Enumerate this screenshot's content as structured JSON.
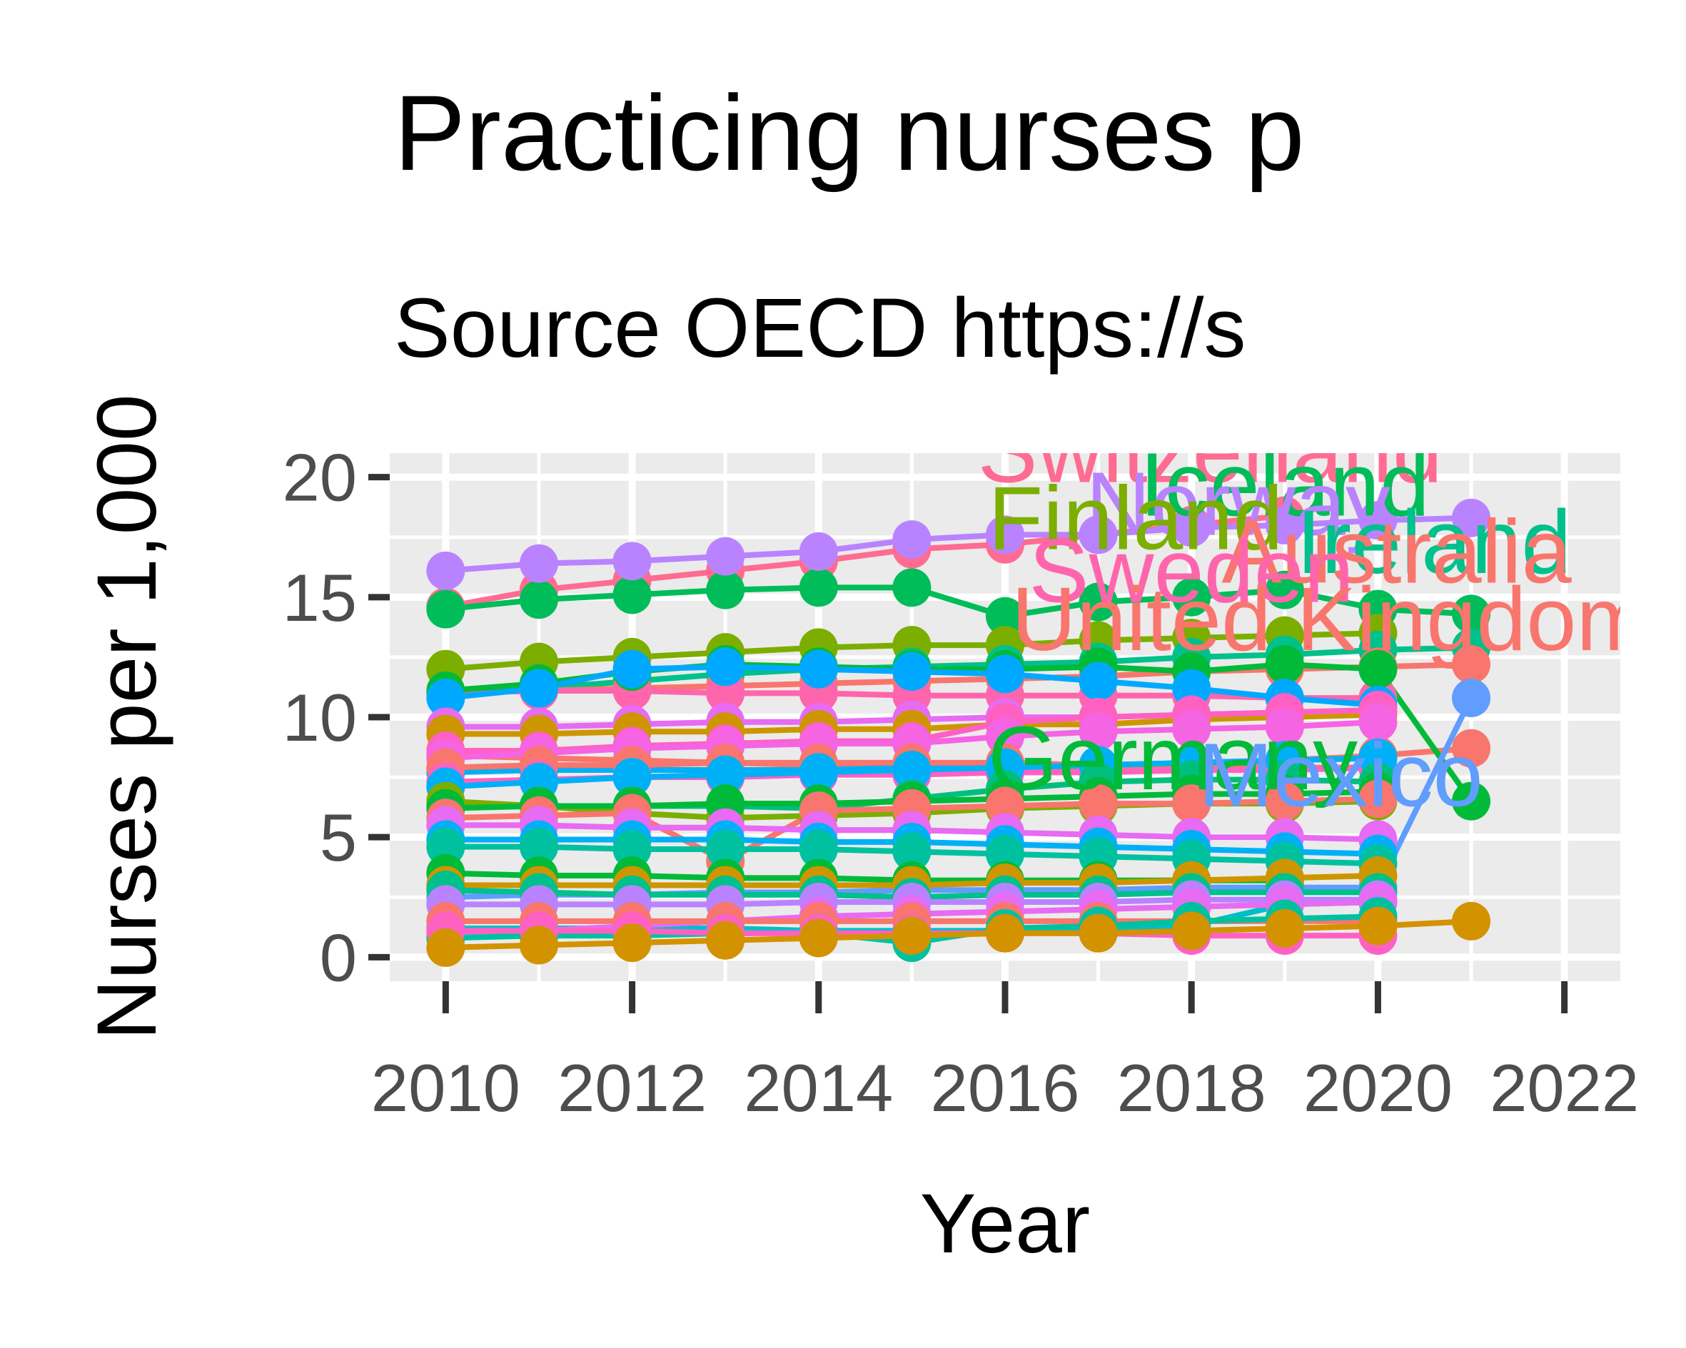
{
  "chart_data": {
    "type": "line",
    "title": "Practicing nurses p",
    "subtitle": "Source OECD https://s",
    "xlabel": "Year",
    "ylabel": "Nurses per 1,000",
    "xlim": [
      2009.4,
      2022.6
    ],
    "ylim": [
      -1,
      21
    ],
    "x_ticks": [
      2010,
      2012,
      2014,
      2016,
      2018,
      2020,
      2022
    ],
    "y_ticks": [
      0,
      5,
      10,
      15,
      20
    ],
    "grid": true,
    "legend": "none",
    "series": [
      {
        "name": "Switzerland",
        "color": "#FF6C91",
        "label_at": [
          2018.2,
          19.8
        ],
        "x": [
          2010,
          2011,
          2012,
          2013,
          2014,
          2015,
          2016,
          2017,
          2018,
          2019
        ],
        "values": [
          14.6,
          15.3,
          15.7,
          16.1,
          16.5,
          17.0,
          17.2,
          17.6,
          18.0,
          18.4
        ]
      },
      {
        "name": "Iceland",
        "color": "#00BC59",
        "label_at": [
          2019.0,
          18.4
        ],
        "x": [
          2010,
          2011,
          2012,
          2013,
          2014,
          2015,
          2016,
          2017,
          2018,
          2019,
          2020,
          2021
        ],
        "values": [
          14.5,
          14.9,
          15.1,
          15.3,
          15.4,
          15.4,
          14.2,
          14.8,
          15.0,
          15.3,
          14.5,
          14.3
        ]
      },
      {
        "name": "Norway",
        "color": "#B983FF",
        "label_at": [
          2018.5,
          17.6
        ],
        "x": [
          2010,
          2011,
          2012,
          2013,
          2014,
          2015,
          2016,
          2017,
          2018,
          2019,
          2020,
          2021
        ],
        "values": [
          16.1,
          16.4,
          16.5,
          16.7,
          16.9,
          17.4,
          17.6,
          17.6,
          17.9,
          18.0,
          18.2,
          18.3
        ]
      },
      {
        "name": "Finland",
        "color": "#7CAE00",
        "label_at": [
          2017.4,
          17.0
        ],
        "x": [
          2010,
          2011,
          2012,
          2013,
          2014,
          2015,
          2016,
          2017,
          2018,
          2019,
          2020
        ],
        "values": [
          12.0,
          12.3,
          12.5,
          12.7,
          12.9,
          13.0,
          13.0,
          13.2,
          13.3,
          13.4,
          13.5
        ]
      },
      {
        "name": "Ireland",
        "color": "#00C08B",
        "label_at": [
          2020.6,
          16.0
        ],
        "x": [
          2010,
          2011,
          2012,
          2013,
          2014,
          2015,
          2016,
          2017,
          2018,
          2019,
          2020,
          2021
        ],
        "values": [
          11.0,
          11.2,
          11.5,
          11.8,
          12.0,
          12.1,
          12.2,
          12.3,
          12.5,
          12.6,
          12.8,
          12.9
        ]
      },
      {
        "name": "Australia",
        "color": "#F8766D",
        "label_at": [
          2020.2,
          15.6
        ],
        "x": [
          2010,
          2011,
          2012,
          2013,
          2014,
          2015,
          2016,
          2017,
          2018,
          2019,
          2020,
          2021
        ],
        "values": [
          11.0,
          11.1,
          11.2,
          11.3,
          11.4,
          11.5,
          11.6,
          11.7,
          11.9,
          12.0,
          12.1,
          12.2
        ]
      },
      {
        "name": "Sweden",
        "color": "#FF65AC",
        "label_at": [
          2018.0,
          14.8
        ],
        "x": [
          2010,
          2011,
          2012,
          2013,
          2014,
          2015,
          2016,
          2017,
          2018,
          2019,
          2020
        ],
        "values": [
          11.0,
          11.1,
          11.1,
          11.0,
          11.0,
          10.9,
          10.9,
          10.9,
          10.9,
          10.8,
          10.8
        ]
      },
      {
        "name": "United Kingdom",
        "color": "#F8766D",
        "label_at": [
          2019.5,
          12.8
        ],
        "x": [
          2010,
          2011,
          2012,
          2013,
          2014,
          2015,
          2016,
          2017,
          2018,
          2019,
          2020,
          2021
        ],
        "values": [
          8.4,
          8.3,
          8.2,
          8.1,
          8.0,
          7.9,
          7.9,
          7.9,
          8.0,
          8.2,
          8.4,
          8.7
        ]
      },
      {
        "name": "Germany",
        "color": "#00BA38",
        "label_at": [
          2017.8,
          7.0
        ],
        "x": [
          2010,
          2011,
          2012,
          2013,
          2014,
          2015,
          2016,
          2017,
          2018,
          2019,
          2020,
          2021
        ],
        "values": [
          11.1,
          11.4,
          11.9,
          12.2,
          12.1,
          12.0,
          12.0,
          12.1,
          11.9,
          12.2,
          12.0,
          6.5
        ]
      },
      {
        "name": "Mexico",
        "color": "#619CFF",
        "label_at": [
          2019.6,
          6.3
        ],
        "x": [
          2010,
          2011,
          2012,
          2013,
          2014,
          2015,
          2016,
          2017,
          2018,
          2019,
          2020,
          2021
        ],
        "values": [
          2.5,
          2.6,
          2.6,
          2.7,
          2.7,
          2.8,
          2.8,
          2.8,
          2.9,
          2.9,
          2.9,
          10.8
        ]
      },
      {
        "series_id": "s11",
        "color": "#00A9FF",
        "x": [
          2010,
          2011,
          2012,
          2013,
          2014,
          2015,
          2016,
          2017,
          2018,
          2019,
          2020
        ],
        "values": [
          10.8,
          11.2,
          12.0,
          12.1,
          12.0,
          11.9,
          11.8,
          11.5,
          11.2,
          10.8,
          10.5
        ]
      },
      {
        "series_id": "s12",
        "color": "#E76BF3",
        "x": [
          2010,
          2011,
          2012,
          2013,
          2014,
          2015,
          2016,
          2017,
          2018,
          2019,
          2020
        ],
        "values": [
          9.6,
          9.6,
          9.7,
          9.8,
          9.8,
          9.9,
          10.0,
          10.0,
          10.1,
          10.2,
          10.2
        ]
      },
      {
        "series_id": "s13",
        "color": "#CD9600",
        "x": [
          2010,
          2011,
          2012,
          2013,
          2014,
          2015,
          2016,
          2017,
          2018,
          2019,
          2020
        ],
        "values": [
          9.3,
          9.3,
          9.4,
          9.4,
          9.5,
          9.5,
          9.7,
          9.7,
          9.9,
          10.0,
          10.1
        ]
      },
      {
        "series_id": "s14",
        "color": "#FF61C3",
        "x": [
          2010,
          2011,
          2012,
          2013,
          2014,
          2015,
          2016,
          2017,
          2018,
          2019,
          2020
        ],
        "values": [
          8.6,
          8.6,
          8.8,
          8.9,
          9.0,
          9.0,
          9.8,
          10.0,
          10.1,
          10.2,
          10.3
        ]
      },
      {
        "series_id": "s15",
        "color": "#F564E3",
        "x": [
          2010,
          2011,
          2012,
          2013,
          2014,
          2015,
          2016,
          2017,
          2018,
          2019,
          2020
        ],
        "values": [
          8.3,
          8.5,
          8.7,
          8.8,
          8.9,
          8.9,
          9.2,
          9.4,
          9.5,
          9.6,
          9.8
        ]
      },
      {
        "series_id": "s16",
        "color": "#00B0F6",
        "x": [
          2010,
          2011,
          2012,
          2013,
          2014,
          2015,
          2016,
          2017,
          2018,
          2019,
          2020
        ],
        "values": [
          7.7,
          7.8,
          7.8,
          7.8,
          7.8,
          7.9,
          8.0,
          8.0,
          8.1,
          8.2,
          8.3
        ]
      },
      {
        "series_id": "s17",
        "color": "#F8766D",
        "x": [
          2010,
          2011,
          2012,
          2013,
          2014,
          2015,
          2016,
          2017,
          2018,
          2019,
          2020
        ],
        "values": [
          7.9,
          8.0,
          8.0,
          8.1,
          8.1,
          8.1,
          8.1,
          8.0,
          7.9,
          7.9,
          7.9
        ]
      },
      {
        "series_id": "s18",
        "color": "#FF61C3",
        "x": [
          2010,
          2011,
          2012,
          2013,
          2014,
          2015,
          2016,
          2017,
          2018,
          2019,
          2020
        ],
        "values": [
          7.3,
          7.4,
          7.5,
          7.5,
          7.6,
          7.6,
          7.7,
          7.7,
          7.8,
          7.8,
          7.9
        ]
      },
      {
        "series_id": "s19",
        "color": "#00B0F6",
        "x": [
          2010,
          2011,
          2012,
          2013,
          2014,
          2015,
          2016,
          2017,
          2018,
          2019,
          2020
        ],
        "values": [
          7.1,
          7.3,
          7.5,
          7.6,
          7.7,
          7.8,
          7.9,
          8.0,
          8.1,
          8.2,
          8.3
        ]
      },
      {
        "series_id": "s20",
        "color": "#00BF7D",
        "x": [
          2010,
          2011,
          2012,
          2013,
          2014,
          2015,
          2016,
          2017,
          2018,
          2019,
          2020
        ],
        "values": [
          6.3,
          6.3,
          6.3,
          6.3,
          6.2,
          6.6,
          7.0,
          7.3,
          7.4,
          7.4,
          7.3
        ]
      },
      {
        "series_id": "s21",
        "color": "#7CAE00",
        "x": [
          2010,
          2011,
          2012,
          2013,
          2014,
          2015,
          2016,
          2017,
          2018,
          2019,
          2020
        ],
        "values": [
          6.5,
          6.3,
          6.0,
          5.8,
          5.9,
          6.0,
          6.2,
          6.3,
          6.4,
          6.4,
          6.5
        ]
      },
      {
        "series_id": "s22",
        "color": "#00BA38",
        "x": [
          2010,
          2011,
          2012,
          2013,
          2014,
          2015,
          2016,
          2017,
          2018,
          2019,
          2020
        ],
        "values": [
          6.2,
          6.3,
          6.3,
          6.4,
          6.4,
          6.5,
          6.6,
          6.7,
          6.8,
          6.8,
          6.9
        ]
      },
      {
        "series_id": "s23",
        "color": "#F8766D",
        "x": [
          2010,
          2011,
          2012,
          2013,
          2014,
          2015,
          2016,
          2017,
          2018,
          2019,
          2020
        ],
        "values": [
          5.8,
          5.9,
          6.0,
          4.0,
          6.1,
          6.2,
          6.3,
          6.4,
          6.4,
          6.5,
          6.6
        ]
      },
      {
        "series_id": "s24",
        "color": "#E76BF3",
        "x": [
          2010,
          2011,
          2012,
          2013,
          2014,
          2015,
          2016,
          2017,
          2018,
          2019,
          2020
        ],
        "values": [
          5.5,
          5.5,
          5.4,
          5.4,
          5.3,
          5.3,
          5.2,
          5.1,
          5.0,
          5.0,
          4.9
        ]
      },
      {
        "series_id": "s25",
        "color": "#00B0F6",
        "x": [
          2010,
          2011,
          2012,
          2013,
          2014,
          2015,
          2016,
          2017,
          2018,
          2019,
          2020
        ],
        "values": [
          4.9,
          4.9,
          4.9,
          4.9,
          4.8,
          4.8,
          4.7,
          4.6,
          4.5,
          4.4,
          4.3
        ]
      },
      {
        "series_id": "s26",
        "color": "#00C19F",
        "x": [
          2010,
          2011,
          2012,
          2013,
          2014,
          2015,
          2016,
          2017,
          2018,
          2019,
          2020
        ],
        "values": [
          4.6,
          4.6,
          4.5,
          4.5,
          4.5,
          4.4,
          4.3,
          4.2,
          4.1,
          4.0,
          3.9
        ]
      },
      {
        "series_id": "s27",
        "color": "#00BA38",
        "x": [
          2010,
          2011,
          2012,
          2013,
          2014,
          2015,
          2016,
          2017,
          2018,
          2019
        ],
        "values": [
          3.5,
          3.4,
          3.4,
          3.3,
          3.3,
          3.2,
          3.2,
          3.2,
          3.2,
          3.2
        ]
      },
      {
        "series_id": "s28",
        "color": "#CD9600",
        "x": [
          2010,
          2011,
          2012,
          2013,
          2014,
          2015,
          2016,
          2017,
          2018,
          2019,
          2020
        ],
        "values": [
          3.0,
          3.0,
          3.0,
          3.0,
          3.0,
          3.0,
          3.1,
          3.1,
          3.2,
          3.3,
          3.4
        ]
      },
      {
        "series_id": "s29",
        "color": "#00C08B",
        "x": [
          2010,
          2011,
          2012,
          2013,
          2014,
          2015,
          2016,
          2017,
          2018,
          2019,
          2020
        ],
        "values": [
          2.8,
          2.7,
          2.6,
          2.6,
          2.6,
          2.5,
          2.6,
          2.6,
          2.7,
          2.7,
          2.7
        ]
      },
      {
        "series_id": "s30",
        "color": "#B983FF",
        "x": [
          2010,
          2011,
          2012,
          2013,
          2014,
          2015,
          2016,
          2017,
          2018,
          2019,
          2020
        ],
        "values": [
          2.2,
          2.2,
          2.2,
          2.2,
          2.3,
          2.3,
          2.3,
          2.3,
          2.4,
          2.4,
          2.4
        ]
      },
      {
        "series_id": "s31",
        "color": "#00BFC4",
        "x": [
          2010,
          2011,
          2012,
          2013,
          2014,
          2015,
          2016,
          2017,
          2018,
          2019,
          2020
        ],
        "values": [
          1.2,
          1.2,
          1.2,
          1.2,
          1.1,
          1.1,
          1.1,
          1.2,
          1.3,
          2.2,
          2.3
        ]
      },
      {
        "series_id": "s32",
        "color": "#E76BF3",
        "x": [
          2010,
          2011,
          2012,
          2013,
          2014,
          2015,
          2016,
          2017,
          2018,
          2019,
          2020
        ],
        "values": [
          1.0,
          1.1,
          1.3,
          1.5,
          1.7,
          1.8,
          1.9,
          2.0,
          2.1,
          2.2,
          2.3
        ]
      },
      {
        "series_id": "s33",
        "color": "#F8766D",
        "x": [
          2010,
          2011,
          2012,
          2013,
          2014,
          2015,
          2016,
          2017,
          2018,
          2019,
          2020
        ],
        "values": [
          1.5,
          1.5,
          1.5,
          1.5,
          1.5,
          1.5,
          1.5,
          1.5,
          1.5,
          1.5,
          1.5
        ]
      },
      {
        "series_id": "s34",
        "color": "#00C19F",
        "x": [
          2010,
          2011,
          2012,
          2013,
          2014,
          2015,
          2016,
          2017,
          2018,
          2019,
          2020
        ],
        "values": [
          0.8,
          0.9,
          0.9,
          1.0,
          1.0,
          0.6,
          1.2,
          1.3,
          1.5,
          1.6,
          1.7
        ]
      },
      {
        "series_id": "s35",
        "color": "#FF61C3",
        "x": [
          2010,
          2011,
          2012,
          2013,
          2014,
          2015,
          2016,
          2017,
          2018,
          2019,
          2020
        ],
        "values": [
          1.1,
          1.1,
          1.1,
          1.0,
          1.0,
          1.0,
          1.0,
          1.0,
          0.9,
          0.9,
          0.9
        ]
      },
      {
        "series_id": "s36",
        "color": "#D39200",
        "x": [
          2010,
          2011,
          2012,
          2013,
          2014,
          2015,
          2016,
          2017,
          2018,
          2019,
          2020,
          2021
        ],
        "values": [
          0.4,
          0.5,
          0.6,
          0.7,
          0.8,
          0.9,
          1.0,
          1.0,
          1.1,
          1.2,
          1.3,
          1.5
        ]
      }
    ]
  }
}
